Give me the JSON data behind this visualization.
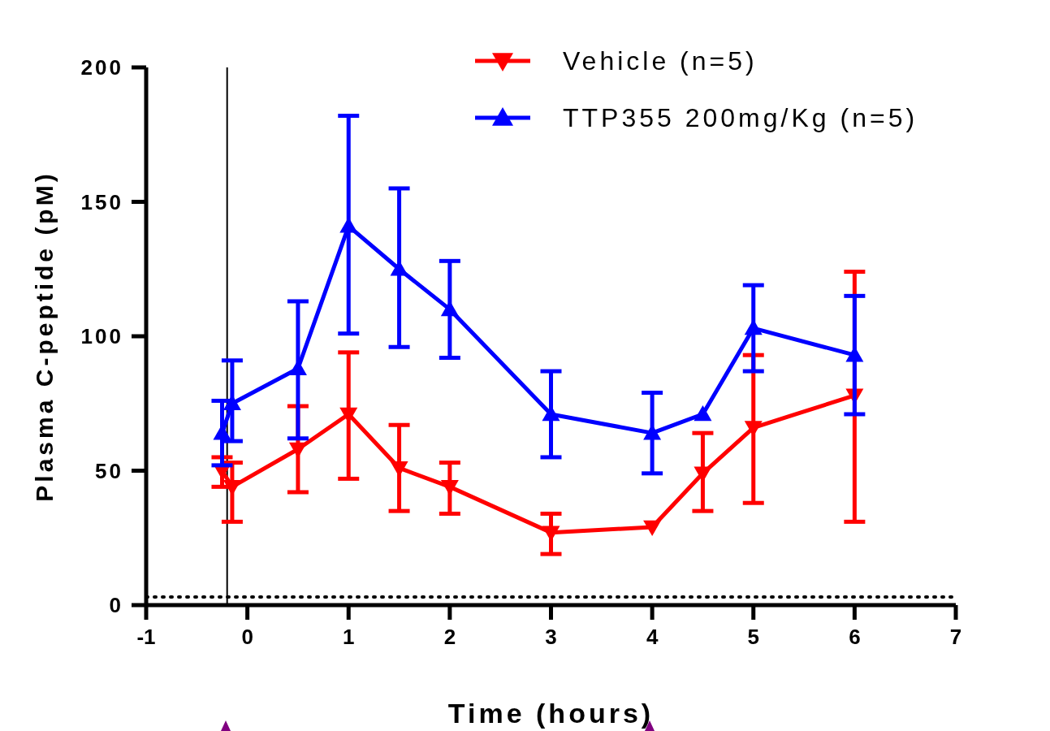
{
  "chart_data": {
    "type": "line",
    "xlabel": "Time (hours)",
    "ylabel": "Plasma C-peptide (pM)",
    "xlim": [
      -1,
      7
    ],
    "xticks": [
      -1,
      0,
      1,
      2,
      3,
      4,
      5,
      6,
      7
    ],
    "ylim": [
      0,
      200
    ],
    "yticks": [
      0,
      50,
      100,
      150,
      200
    ],
    "grid": false,
    "legend": "top right",
    "line_style": "solid",
    "ref_lines": [
      {
        "axis": "x",
        "value": -0.2,
        "color": "#000000",
        "line_style": "solid"
      },
      {
        "axis": "y",
        "value": 3,
        "color": "#000000",
        "line_style": "dotted"
      }
    ],
    "series": [
      {
        "name": "Vehicle (n=5)",
        "color": "#ff0000",
        "marker": "triangle-down",
        "x": [
          -0.25,
          -0.15,
          0.5,
          1,
          1.5,
          2,
          3,
          4,
          4.5,
          5,
          6
        ],
        "values": [
          50,
          44,
          58,
          71,
          51,
          44,
          27,
          29,
          49,
          66,
          78
        ],
        "errors": [
          [
            44,
            55
          ],
          [
            31,
            53
          ],
          [
            42,
            74
          ],
          [
            47,
            94
          ],
          [
            35,
            67
          ],
          [
            34,
            53
          ],
          [
            19,
            34
          ],
          null,
          [
            35,
            64
          ],
          [
            38,
            93
          ],
          [
            31,
            124
          ]
        ]
      },
      {
        "name": "TTP355 200mg/Kg (n=5)",
        "color": "#0000ff",
        "marker": "triangle",
        "x": [
          -0.25,
          -0.15,
          0.5,
          1,
          1.5,
          2,
          3,
          4,
          4.5,
          5,
          6
        ],
        "values": [
          64,
          75,
          88,
          141,
          125,
          110,
          71,
          64,
          71,
          103,
          93
        ],
        "errors": [
          [
            52,
            76
          ],
          [
            61,
            91
          ],
          [
            62,
            113
          ],
          [
            101,
            182
          ],
          [
            96,
            155
          ],
          [
            92,
            128
          ],
          [
            55,
            87
          ],
          [
            49,
            79
          ],
          null,
          [
            87,
            119
          ],
          [
            71,
            115
          ]
        ]
      }
    ]
  }
}
